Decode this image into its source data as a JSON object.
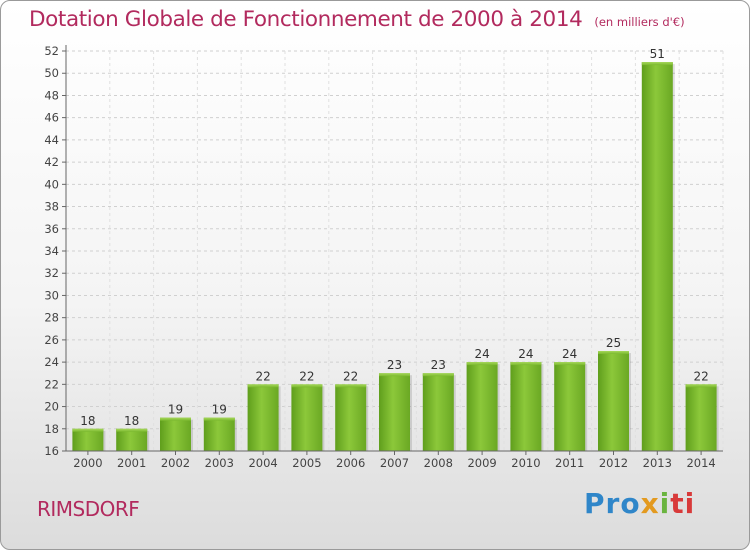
{
  "chart_data": {
    "type": "bar",
    "title": "Dotation Globale de Fonctionnement de 2000 à 2014",
    "subtitle": "(en milliers d'€)",
    "categories": [
      "2000",
      "2001",
      "2002",
      "2003",
      "2004",
      "2005",
      "2006",
      "2007",
      "2008",
      "2009",
      "2010",
      "2011",
      "2012",
      "2013",
      "2014"
    ],
    "values": [
      18,
      18,
      19,
      19,
      22,
      22,
      22,
      23,
      23,
      24,
      24,
      24,
      25,
      51,
      22
    ],
    "ylim": [
      16,
      52
    ],
    "yticks": [
      16,
      18,
      20,
      22,
      24,
      26,
      28,
      30,
      32,
      34,
      36,
      38,
      40,
      42,
      44,
      46,
      48,
      50,
      52
    ],
    "xlabel": "",
    "ylabel": "",
    "bar_color": "#7ab82e",
    "title_color": "#b22a5e"
  },
  "footer": {
    "commune": "RIMSDORF",
    "logo": {
      "p1": "Pro",
      "p2": "x",
      "p3": "i",
      "p4": "ti"
    }
  }
}
